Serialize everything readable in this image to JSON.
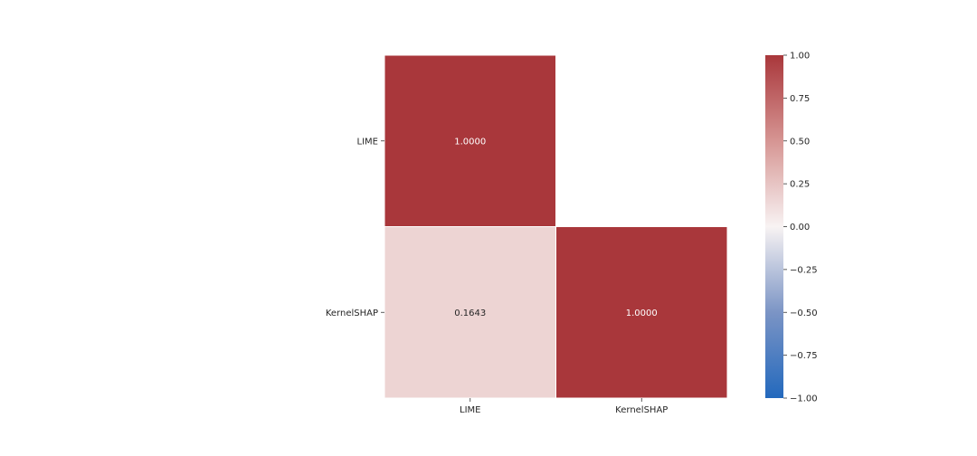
{
  "chart_data": {
    "type": "heatmap",
    "title": "",
    "xlabel": "",
    "ylabel": "",
    "x_labels": [
      "LIME",
      "KernelSHAP"
    ],
    "y_labels": [
      "LIME",
      "KernelSHAP"
    ],
    "cells": [
      {
        "row": 0,
        "col": 0,
        "value": 1.0,
        "label": "1.0000"
      },
      {
        "row": 1,
        "col": 0,
        "value": 0.1643,
        "label": "0.1643"
      },
      {
        "row": 1,
        "col": 1,
        "value": 1.0,
        "label": "1.0000"
      }
    ],
    "masked": "upper triangle",
    "colormap": {
      "name": "vlag",
      "stops": [
        {
          "value": -1.0,
          "color": "#2369bd"
        },
        {
          "value": -0.5,
          "color": "#7b94c5"
        },
        {
          "value": 0.0,
          "color": "#f8f3f3"
        },
        {
          "value": 0.5,
          "color": "#d69593"
        },
        {
          "value": 1.0,
          "color": "#a9373b"
        }
      ]
    },
    "colorbar": {
      "range": [
        -1.0,
        1.0
      ],
      "ticks": [
        1.0,
        0.75,
        0.5,
        0.25,
        0.0,
        -0.25,
        -0.5,
        -0.75,
        -1.0
      ],
      "tick_labels": [
        "1.00",
        "0.75",
        "0.50",
        "0.25",
        "0.00",
        "−0.25",
        "−0.50",
        "−0.75",
        "−1.00"
      ]
    },
    "annotation_colors": {
      "light": "#ffffff",
      "dark": "#262626"
    },
    "grid": false,
    "legend": "colorbar-right"
  }
}
